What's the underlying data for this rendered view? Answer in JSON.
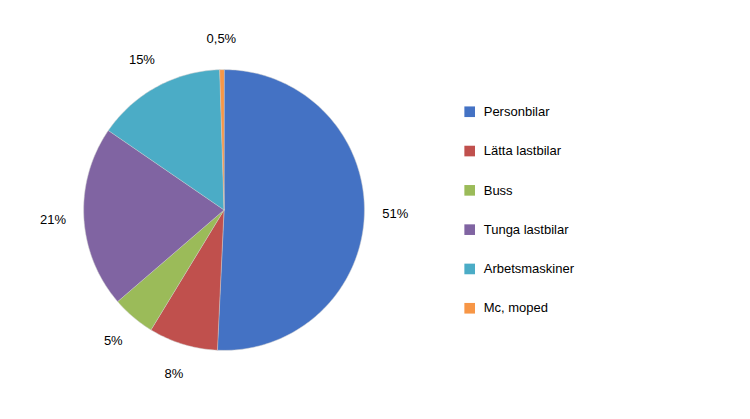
{
  "chart_data": {
    "type": "pie",
    "categories": [
      "Personbilar",
      "Lätta lastbilar",
      "Buss",
      "Tunga lastbilar",
      "Arbetsmaskiner",
      "Mc, moped"
    ],
    "values": [
      51,
      8,
      5,
      21,
      15,
      0.5
    ],
    "value_labels": [
      "51%",
      "8%",
      "5%",
      "21%",
      "15%",
      "0,5%"
    ],
    "colors": [
      "#4472C4",
      "#C0504D",
      "#9BBB59",
      "#8064A2",
      "#4BACC6",
      "#F79646"
    ],
    "data_labels": true,
    "legend": "right"
  }
}
